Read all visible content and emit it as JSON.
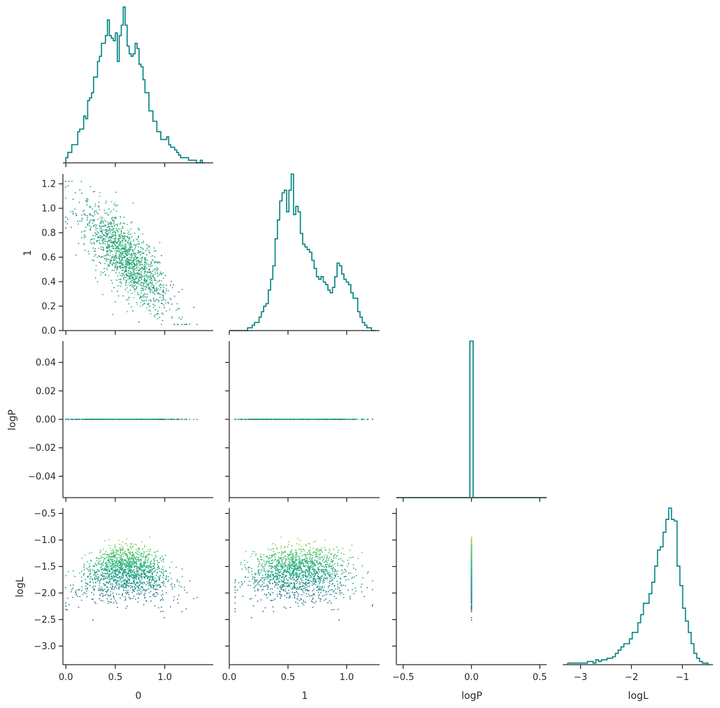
{
  "chart_data": {
    "type": "corner",
    "parameters": [
      "0",
      "1",
      "logP",
      "logL"
    ],
    "grid": false,
    "colormap": "viridis",
    "colored_by": "logL",
    "hist_color": "#008080",
    "ranges": {
      "0": [
        -0.03,
        1.49
      ],
      "1": [
        0.0,
        1.28
      ],
      "logP": [
        -0.55,
        0.55
      ],
      "logL": [
        -3.35,
        -0.4
      ]
    },
    "scatter_y_range_logP": [
      -0.055,
      0.055
    ],
    "ticks": {
      "0": [
        "0.0",
        "0.5",
        "1.0"
      ],
      "1": [
        "0.0",
        "0.2",
        "0.4",
        "0.6",
        "0.8",
        "1.0",
        "1.2"
      ],
      "1_x": [
        "0.0",
        "0.5",
        "1.0"
      ],
      "logP_y": [
        "−0.04",
        "−0.02",
        "0.00",
        "0.02",
        "0.04"
      ],
      "logP_x": [
        "−0.5",
        "0.0",
        "0.5"
      ],
      "logL_y": [
        "−3.0",
        "−2.5",
        "−2.0",
        "−1.5",
        "−1.0",
        "−0.5"
      ],
      "logL_x": [
        "−3",
        "−2",
        "−1"
      ]
    },
    "tick_values": {
      "0": [
        0,
        0.5,
        1.0
      ],
      "1_y": [
        0,
        0.2,
        0.4,
        0.6,
        0.8,
        1.0,
        1.2
      ],
      "1_x": [
        0,
        0.5,
        1.0
      ],
      "logP_y": [
        -0.04,
        -0.02,
        0,
        0.02,
        0.04
      ],
      "logP_x": [
        -0.5,
        0,
        0.5
      ],
      "logL_y": [
        -3.0,
        -2.5,
        -2.0,
        -1.5,
        -1.0,
        -0.5
      ],
      "logL_x": [
        -3,
        -2,
        -1
      ]
    },
    "histograms": {
      "0": {
        "range": [
          0.0,
          1.4
        ],
        "counts": [
          2,
          4,
          4,
          7,
          7,
          7,
          12,
          13,
          13,
          18,
          17,
          24,
          25,
          27,
          33,
          33,
          39,
          41,
          46,
          46,
          49,
          55,
          49,
          48,
          47,
          50,
          39,
          49,
          53,
          60,
          53,
          45,
          42,
          41,
          42,
          46,
          44,
          38,
          37,
          32,
          27,
          27,
          20,
          20,
          16,
          16,
          12,
          12,
          9,
          9,
          9,
          10,
          7,
          6,
          6,
          5,
          4,
          3,
          2,
          2,
          2,
          2,
          1,
          1,
          1,
          1,
          0,
          0,
          1,
          0
        ]
      },
      "1": {
        "range": [
          0.0,
          1.25
        ],
        "counts": [
          0,
          0,
          0,
          0,
          0,
          0,
          0,
          0,
          1,
          1,
          2,
          3,
          3,
          5,
          7,
          9,
          10,
          15,
          19,
          24,
          34,
          41,
          48,
          51,
          52,
          44,
          52,
          58,
          43,
          46,
          44,
          36,
          32,
          31,
          30,
          29,
          26,
          23,
          20,
          19,
          20,
          18,
          17,
          15,
          14,
          16,
          20,
          25,
          24,
          21,
          19,
          18,
          17,
          14,
          12,
          12,
          7,
          5,
          3,
          2,
          1,
          1,
          0,
          0
        ]
      },
      "logP": {
        "range": [
          -0.55,
          0.55
        ],
        "spike_at": 0.0,
        "spike_count": 1
      },
      "logL": {
        "range": [
          -3.25,
          -0.5
        ],
        "counts": [
          1,
          1,
          1,
          1,
          1,
          1,
          1,
          2,
          2,
          1,
          3,
          2,
          3,
          3,
          4,
          4,
          5,
          7,
          9,
          11,
          13,
          13,
          16,
          20,
          20,
          26,
          31,
          38,
          38,
          44,
          51,
          61,
          71,
          73,
          82,
          90,
          97,
          90,
          89,
          61,
          49,
          35,
          27,
          20,
          13,
          7,
          4,
          2,
          1,
          1
        ]
      }
    },
    "scatter_points": 1500
  }
}
